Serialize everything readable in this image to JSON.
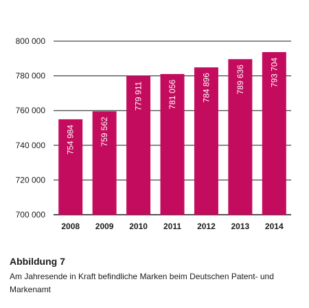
{
  "chart_data": {
    "type": "bar",
    "categories": [
      "2008",
      "2009",
      "2010",
      "2011",
      "2012",
      "2013",
      "2014"
    ],
    "values": [
      754984,
      759562,
      779911,
      781056,
      784896,
      789636,
      793704
    ],
    "value_labels": [
      "754 984",
      "759 562",
      "779 911",
      "781 056",
      "784 896",
      "789 636",
      "793 704"
    ],
    "yticks": [
      700000,
      720000,
      740000,
      760000,
      780000,
      800000
    ],
    "ytick_labels": [
      "700 000",
      "720 000",
      "740 000",
      "760 000",
      "780 000",
      "800 000"
    ],
    "ylim": [
      700000,
      800000
    ],
    "grid": true,
    "colors": {
      "bar": "#c40c5e",
      "grid": "#1a1a1a",
      "text": "#1a1a1a",
      "label": "#ffffff"
    }
  },
  "caption": {
    "figure_label": "Abbildung 7",
    "text": "Am Jahresende in Kraft befindliche Marken beim Deutschen Patent- und Markenamt"
  }
}
